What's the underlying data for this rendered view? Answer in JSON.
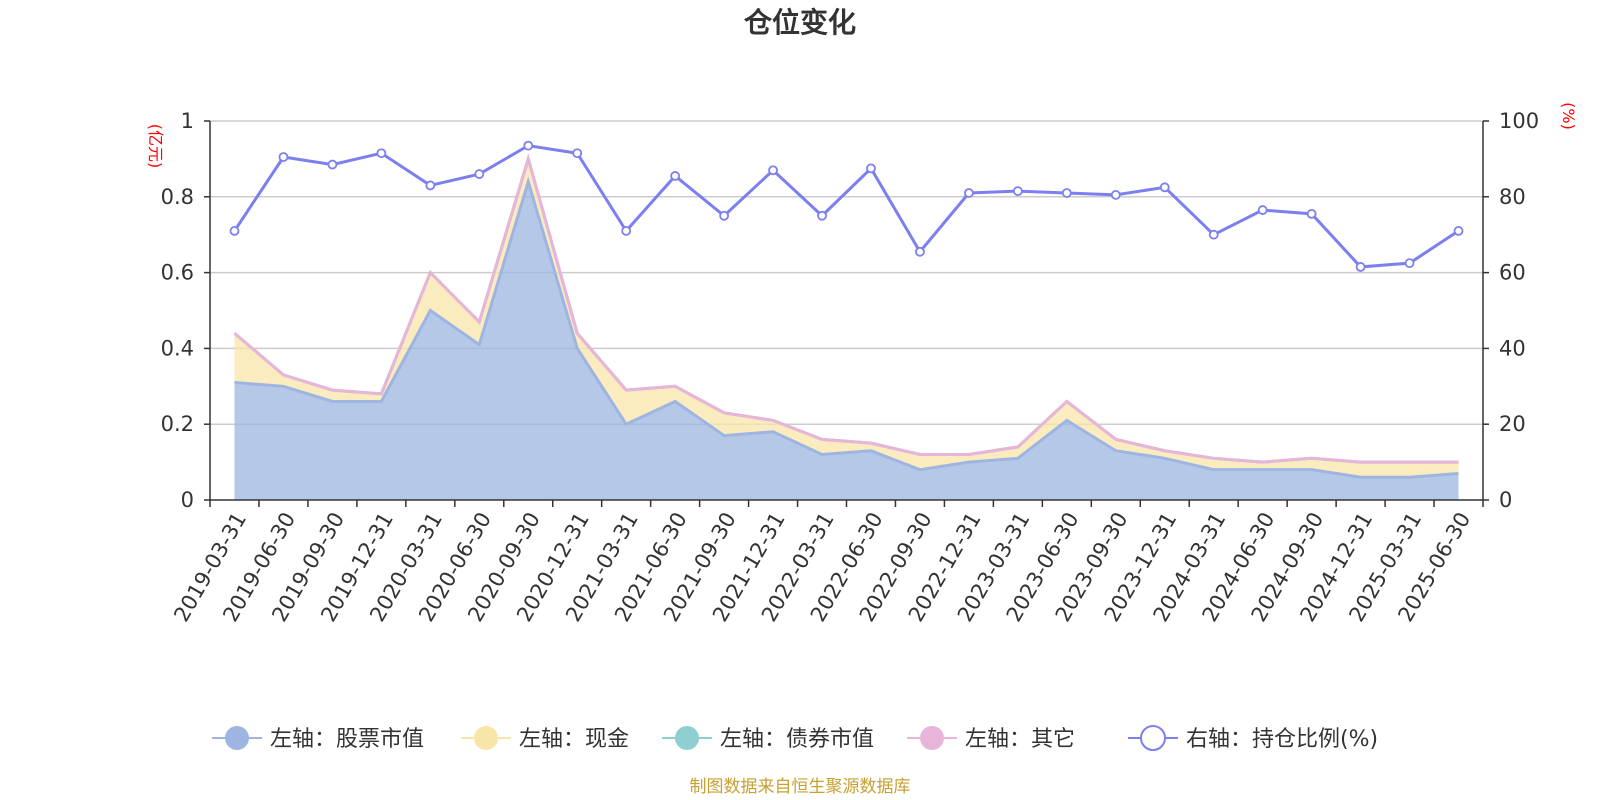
{
  "chart_data": {
    "type": "area",
    "title": "仓位变化",
    "left_axis_unit": "(亿元)",
    "right_axis_unit": "(%)",
    "left_axis": {
      "min": 0,
      "max": 1,
      "ticks": [
        "0",
        "0.2",
        "0.4",
        "0.6",
        "0.8",
        "1"
      ]
    },
    "right_axis": {
      "min": 0,
      "max": 100,
      "ticks": [
        "0",
        "20",
        "40",
        "60",
        "80",
        "100"
      ]
    },
    "grid": true,
    "legend_position": "bottom",
    "categories": [
      "2019-03-31",
      "2019-06-30",
      "2019-09-30",
      "2019-12-31",
      "2020-03-31",
      "2020-06-30",
      "2020-09-30",
      "2020-12-31",
      "2021-03-31",
      "2021-06-30",
      "2021-09-30",
      "2021-12-31",
      "2022-03-31",
      "2022-06-30",
      "2022-09-30",
      "2022-12-31",
      "2023-03-31",
      "2023-06-30",
      "2023-09-30",
      "2023-12-31",
      "2024-03-31",
      "2024-06-30",
      "2024-09-30",
      "2024-12-31",
      "2025-03-31",
      "2025-06-30"
    ],
    "series": [
      {
        "name": "左轴：股票市值",
        "axis": "left",
        "color": "#9db5e0",
        "values": [
          0.31,
          0.3,
          0.26,
          0.26,
          0.5,
          0.41,
          0.84,
          0.4,
          0.2,
          0.26,
          0.17,
          0.18,
          0.12,
          0.13,
          0.08,
          0.1,
          0.11,
          0.21,
          0.13,
          0.11,
          0.08,
          0.08,
          0.08,
          0.06,
          0.06,
          0.07
        ]
      },
      {
        "name": "左轴：现金",
        "axis": "left",
        "color": "#f8e6a8",
        "values": [
          0.13,
          0.03,
          0.03,
          0.02,
          0.1,
          0.06,
          0.06,
          0.04,
          0.09,
          0.04,
          0.06,
          0.03,
          0.04,
          0.02,
          0.04,
          0.02,
          0.03,
          0.05,
          0.03,
          0.02,
          0.03,
          0.02,
          0.03,
          0.04,
          0.04,
          0.03
        ]
      },
      {
        "name": "左轴：债券市值",
        "axis": "left",
        "color": "#8ed0d2",
        "values": [
          0,
          0,
          0,
          0,
          0,
          0,
          0,
          0,
          0,
          0,
          0,
          0,
          0,
          0,
          0,
          0,
          0,
          0,
          0,
          0,
          0,
          0,
          0,
          0,
          0,
          0
        ]
      },
      {
        "name": "左轴：其它",
        "axis": "left",
        "color": "#e8b4da",
        "values": [
          0,
          0,
          0,
          0,
          0,
          0,
          0,
          0,
          0,
          0,
          0,
          0,
          0,
          0,
          0,
          0,
          0,
          0,
          0,
          0,
          0,
          0,
          0,
          0,
          0,
          0
        ]
      },
      {
        "name": "右轴：持仓比例(%)",
        "axis": "right",
        "color": "#7b7ff0",
        "values": [
          71,
          90.5,
          88.5,
          91.5,
          83,
          86,
          93.5,
          91.5,
          71,
          85.5,
          75,
          87,
          75,
          87.5,
          65.5,
          81,
          81.5,
          81,
          80.5,
          82.5,
          70,
          76.5,
          75.5,
          61.5,
          62.5,
          71
        ]
      }
    ]
  },
  "footer": "制图数据来自恒生聚源数据库"
}
